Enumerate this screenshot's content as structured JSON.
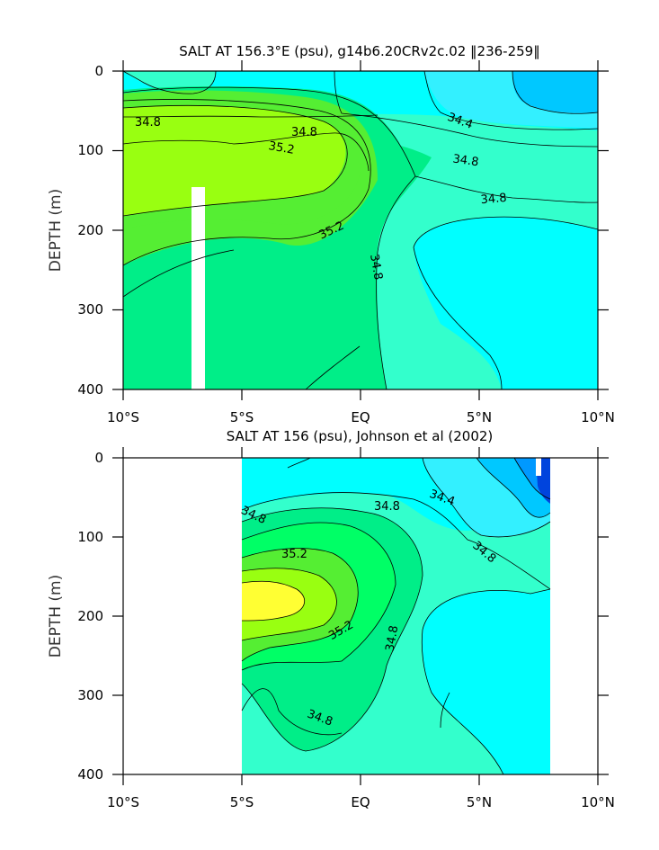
{
  "chart_data": [
    {
      "type": "contour",
      "title": "SALT AT 156.3°E (psu), g14b6.20CRv2c.02 ‖236-259‖",
      "xlabel": "",
      "ylabel": "DEPTH (m)",
      "x_ticks": [
        "10°S",
        "5°S",
        "EQ",
        "5°N",
        "10°N"
      ],
      "x_tick_values": [
        -10,
        -5,
        0,
        5,
        10
      ],
      "y_ticks": [
        "0",
        "100",
        "200",
        "300",
        "400"
      ],
      "y_tick_values": [
        0,
        100,
        200,
        300,
        400
      ],
      "xlim": [
        -10,
        10
      ],
      "ylim": [
        400,
        0
      ],
      "contour_interval": 0.2,
      "contour_labels": [
        "34.8",
        "34.8",
        "34.4",
        "35.2",
        "34.8",
        "34.8",
        "35.2",
        "34.8"
      ],
      "levels": [
        {
          "level": "<34.2",
          "color": "#00c8ff"
        },
        {
          "level": "34.2-34.4",
          "color": "#33f0ff"
        },
        {
          "level": "34.4-34.6",
          "color": "#00ffff"
        },
        {
          "level": "34.6-34.8",
          "color": "#33ffcc"
        },
        {
          "level": "34.8-35.0",
          "color": "#00ee88"
        },
        {
          "level": "35.0-35.2",
          "color": "#55ee33"
        },
        {
          "level": ">35.2",
          "color": "#99ff11"
        }
      ],
      "masked_gap_lon": -6.7,
      "masked_gap_depth": [
        145,
        400
      ]
    },
    {
      "type": "contour",
      "title": "SALT AT 156 (psu), Johnson et al (2002)",
      "xlabel": "",
      "ylabel": "DEPTH (m)",
      "x_ticks": [
        "10°S",
        "5°S",
        "EQ",
        "5°N",
        "10°N"
      ],
      "x_tick_values": [
        -10,
        -5,
        0,
        5,
        10
      ],
      "y_ticks": [
        "0",
        "100",
        "200",
        "300",
        "400"
      ],
      "y_tick_values": [
        0,
        100,
        200,
        300,
        400
      ],
      "xlim": [
        -10,
        10
      ],
      "ylim": [
        400,
        0
      ],
      "data_extent_lon": [
        -5,
        8
      ],
      "contour_interval": 0.2,
      "contour_labels": [
        "34.8",
        "34.8",
        "34.4",
        "35.2",
        "34.8",
        "35.2",
        "34.8",
        "34.8"
      ],
      "levels": [
        {
          "level": "<33.8",
          "color": "#0044dd"
        },
        {
          "level": "33.8-34.0",
          "color": "#0099ff"
        },
        {
          "level": "34.0-34.2",
          "color": "#00c8ff"
        },
        {
          "level": "34.2-34.4",
          "color": "#33f0ff"
        },
        {
          "level": "34.4-34.6",
          "color": "#00ffff"
        },
        {
          "level": "34.6-34.8",
          "color": "#33ffcc"
        },
        {
          "level": "34.8-35.0",
          "color": "#00ee88"
        },
        {
          "level": "35.0-35.2",
          "color": "#00ff66"
        },
        {
          "level": "35.2-35.4",
          "color": "#55ee33"
        },
        {
          "level": "35.4-35.6",
          "color": "#99ff11"
        },
        {
          "level": ">35.6",
          "color": "#ffff33"
        }
      ]
    }
  ]
}
